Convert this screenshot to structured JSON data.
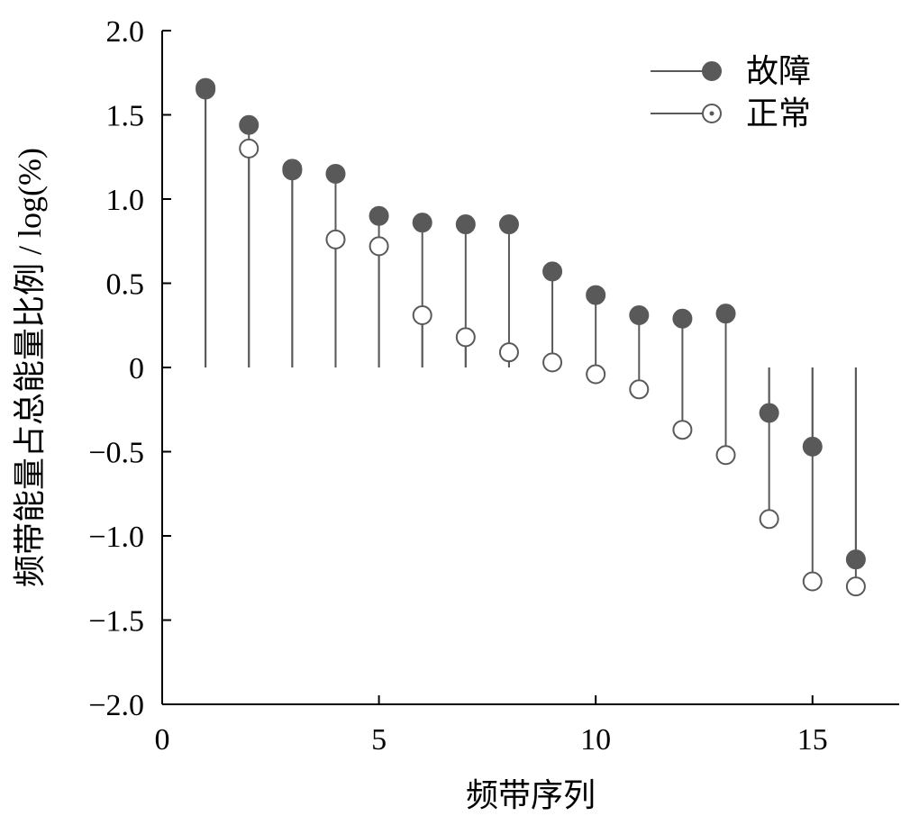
{
  "chart_data": {
    "type": "stem",
    "xlabel": "频带序列",
    "ylabel": "频带能量占总能量比例 / log(%)",
    "xlim": [
      0,
      17
    ],
    "ylim": [
      -2.0,
      2.0
    ],
    "x_ticks": [
      0,
      5,
      10,
      15
    ],
    "x_tick_labels": [
      "0",
      "5",
      "10",
      "15"
    ],
    "y_ticks": [
      2.0,
      1.5,
      1.0,
      0.5,
      0,
      -0.5,
      -1.0,
      -1.5,
      -2.0
    ],
    "y_tick_labels": [
      "2.0",
      "1.5",
      "1.0",
      "0.5",
      "0",
      "−0.5",
      "−1.0",
      "−1.5",
      "−2.0"
    ],
    "legend_position": "top-right",
    "x": [
      1,
      2,
      3,
      4,
      5,
      6,
      7,
      8,
      9,
      10,
      11,
      12,
      13,
      14,
      15,
      16
    ],
    "series": [
      {
        "name": "故障",
        "marker": "filled-circle",
        "color": "#595959",
        "values": [
          1.66,
          1.44,
          1.17,
          1.15,
          0.9,
          0.86,
          0.85,
          0.85,
          0.57,
          0.43,
          0.31,
          0.29,
          0.32,
          -0.27,
          -0.47,
          -1.14
        ]
      },
      {
        "name": "正常",
        "marker": "open-circle",
        "color": "#595959",
        "values": [
          1.65,
          1.3,
          1.18,
          0.76,
          0.72,
          0.31,
          0.18,
          0.09,
          0.03,
          -0.04,
          -0.13,
          -0.37,
          -0.52,
          -0.9,
          -1.27,
          -1.3
        ]
      }
    ]
  }
}
